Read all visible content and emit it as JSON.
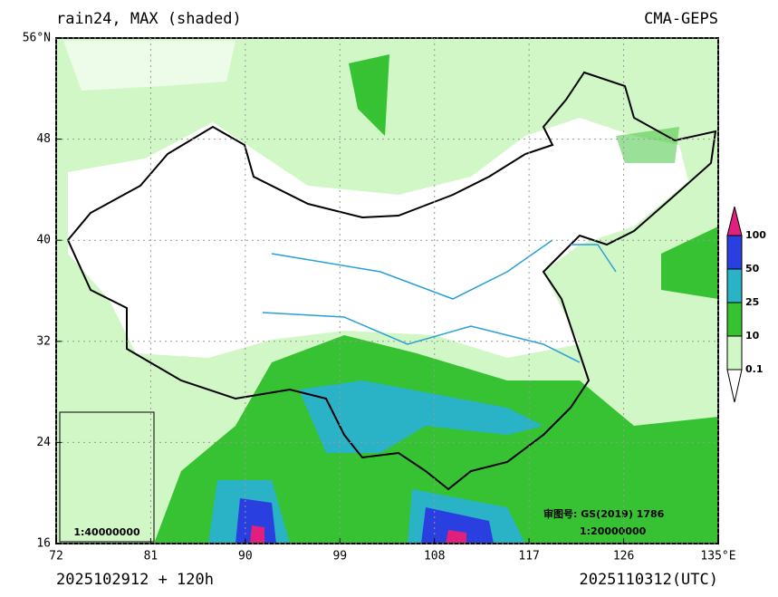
{
  "header": {
    "title": "rain24, MAX (shaded)",
    "source": "CMA-GEPS"
  },
  "map": {
    "xlim": [
      72,
      135
    ],
    "ylim": [
      16,
      56
    ],
    "xticks": [
      72,
      81,
      90,
      99,
      108,
      117,
      126,
      {
        "value": 135,
        "label": "135°E"
      }
    ],
    "yticks": [
      16,
      24,
      32,
      40,
      48,
      {
        "value": 56,
        "label": "56°N"
      }
    ],
    "grid": true
  },
  "colorbar": {
    "levels": [
      0.1,
      10,
      25,
      50,
      100
    ],
    "colors": [
      "#ffffff",
      "#d2f7c6",
      "#36c232",
      "#2ab3c7",
      "#2a3fe0",
      "#e0207c"
    ]
  },
  "annotations": {
    "approval": "审图号: GS(2019) 1786",
    "scale": "1:20000000",
    "inset_scale": "1:40000000"
  },
  "footer": {
    "init": "2025102912 + 120h",
    "valid": "2025110312(UTC)"
  }
}
